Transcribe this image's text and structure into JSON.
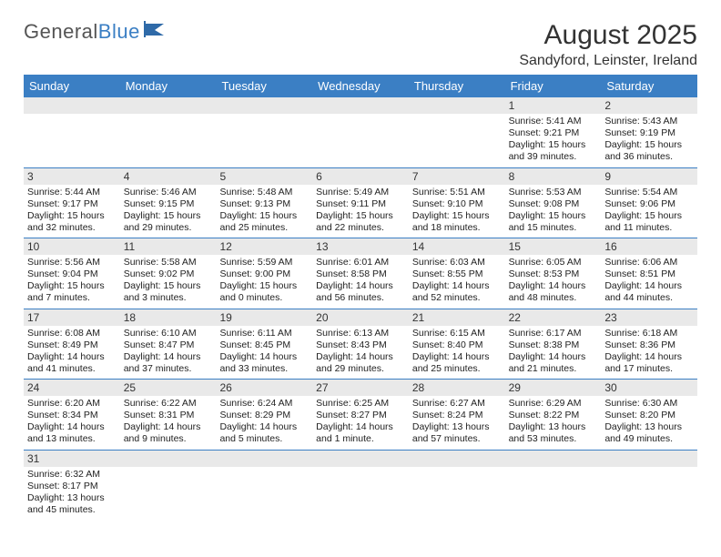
{
  "logo": {
    "text1": "General",
    "text2": "Blue"
  },
  "title": "August 2025",
  "location": "Sandyford, Leinster, Ireland",
  "colors": {
    "header_bg": "#3b7fc4",
    "row_band": "#e9e9e9",
    "text": "#333333",
    "page_bg": "#ffffff"
  },
  "day_labels": [
    "Sunday",
    "Monday",
    "Tuesday",
    "Wednesday",
    "Thursday",
    "Friday",
    "Saturday"
  ],
  "weeks": [
    [
      null,
      null,
      null,
      null,
      null,
      {
        "n": "1",
        "sr": "Sunrise: 5:41 AM",
        "ss": "Sunset: 9:21 PM",
        "d1": "Daylight: 15 hours",
        "d2": "and 39 minutes."
      },
      {
        "n": "2",
        "sr": "Sunrise: 5:43 AM",
        "ss": "Sunset: 9:19 PM",
        "d1": "Daylight: 15 hours",
        "d2": "and 36 minutes."
      }
    ],
    [
      {
        "n": "3",
        "sr": "Sunrise: 5:44 AM",
        "ss": "Sunset: 9:17 PM",
        "d1": "Daylight: 15 hours",
        "d2": "and 32 minutes."
      },
      {
        "n": "4",
        "sr": "Sunrise: 5:46 AM",
        "ss": "Sunset: 9:15 PM",
        "d1": "Daylight: 15 hours",
        "d2": "and 29 minutes."
      },
      {
        "n": "5",
        "sr": "Sunrise: 5:48 AM",
        "ss": "Sunset: 9:13 PM",
        "d1": "Daylight: 15 hours",
        "d2": "and 25 minutes."
      },
      {
        "n": "6",
        "sr": "Sunrise: 5:49 AM",
        "ss": "Sunset: 9:11 PM",
        "d1": "Daylight: 15 hours",
        "d2": "and 22 minutes."
      },
      {
        "n": "7",
        "sr": "Sunrise: 5:51 AM",
        "ss": "Sunset: 9:10 PM",
        "d1": "Daylight: 15 hours",
        "d2": "and 18 minutes."
      },
      {
        "n": "8",
        "sr": "Sunrise: 5:53 AM",
        "ss": "Sunset: 9:08 PM",
        "d1": "Daylight: 15 hours",
        "d2": "and 15 minutes."
      },
      {
        "n": "9",
        "sr": "Sunrise: 5:54 AM",
        "ss": "Sunset: 9:06 PM",
        "d1": "Daylight: 15 hours",
        "d2": "and 11 minutes."
      }
    ],
    [
      {
        "n": "10",
        "sr": "Sunrise: 5:56 AM",
        "ss": "Sunset: 9:04 PM",
        "d1": "Daylight: 15 hours",
        "d2": "and 7 minutes."
      },
      {
        "n": "11",
        "sr": "Sunrise: 5:58 AM",
        "ss": "Sunset: 9:02 PM",
        "d1": "Daylight: 15 hours",
        "d2": "and 3 minutes."
      },
      {
        "n": "12",
        "sr": "Sunrise: 5:59 AM",
        "ss": "Sunset: 9:00 PM",
        "d1": "Daylight: 15 hours",
        "d2": "and 0 minutes."
      },
      {
        "n": "13",
        "sr": "Sunrise: 6:01 AM",
        "ss": "Sunset: 8:58 PM",
        "d1": "Daylight: 14 hours",
        "d2": "and 56 minutes."
      },
      {
        "n": "14",
        "sr": "Sunrise: 6:03 AM",
        "ss": "Sunset: 8:55 PM",
        "d1": "Daylight: 14 hours",
        "d2": "and 52 minutes."
      },
      {
        "n": "15",
        "sr": "Sunrise: 6:05 AM",
        "ss": "Sunset: 8:53 PM",
        "d1": "Daylight: 14 hours",
        "d2": "and 48 minutes."
      },
      {
        "n": "16",
        "sr": "Sunrise: 6:06 AM",
        "ss": "Sunset: 8:51 PM",
        "d1": "Daylight: 14 hours",
        "d2": "and 44 minutes."
      }
    ],
    [
      {
        "n": "17",
        "sr": "Sunrise: 6:08 AM",
        "ss": "Sunset: 8:49 PM",
        "d1": "Daylight: 14 hours",
        "d2": "and 41 minutes."
      },
      {
        "n": "18",
        "sr": "Sunrise: 6:10 AM",
        "ss": "Sunset: 8:47 PM",
        "d1": "Daylight: 14 hours",
        "d2": "and 37 minutes."
      },
      {
        "n": "19",
        "sr": "Sunrise: 6:11 AM",
        "ss": "Sunset: 8:45 PM",
        "d1": "Daylight: 14 hours",
        "d2": "and 33 minutes."
      },
      {
        "n": "20",
        "sr": "Sunrise: 6:13 AM",
        "ss": "Sunset: 8:43 PM",
        "d1": "Daylight: 14 hours",
        "d2": "and 29 minutes."
      },
      {
        "n": "21",
        "sr": "Sunrise: 6:15 AM",
        "ss": "Sunset: 8:40 PM",
        "d1": "Daylight: 14 hours",
        "d2": "and 25 minutes."
      },
      {
        "n": "22",
        "sr": "Sunrise: 6:17 AM",
        "ss": "Sunset: 8:38 PM",
        "d1": "Daylight: 14 hours",
        "d2": "and 21 minutes."
      },
      {
        "n": "23",
        "sr": "Sunrise: 6:18 AM",
        "ss": "Sunset: 8:36 PM",
        "d1": "Daylight: 14 hours",
        "d2": "and 17 minutes."
      }
    ],
    [
      {
        "n": "24",
        "sr": "Sunrise: 6:20 AM",
        "ss": "Sunset: 8:34 PM",
        "d1": "Daylight: 14 hours",
        "d2": "and 13 minutes."
      },
      {
        "n": "25",
        "sr": "Sunrise: 6:22 AM",
        "ss": "Sunset: 8:31 PM",
        "d1": "Daylight: 14 hours",
        "d2": "and 9 minutes."
      },
      {
        "n": "26",
        "sr": "Sunrise: 6:24 AM",
        "ss": "Sunset: 8:29 PM",
        "d1": "Daylight: 14 hours",
        "d2": "and 5 minutes."
      },
      {
        "n": "27",
        "sr": "Sunrise: 6:25 AM",
        "ss": "Sunset: 8:27 PM",
        "d1": "Daylight: 14 hours",
        "d2": "and 1 minute."
      },
      {
        "n": "28",
        "sr": "Sunrise: 6:27 AM",
        "ss": "Sunset: 8:24 PM",
        "d1": "Daylight: 13 hours",
        "d2": "and 57 minutes."
      },
      {
        "n": "29",
        "sr": "Sunrise: 6:29 AM",
        "ss": "Sunset: 8:22 PM",
        "d1": "Daylight: 13 hours",
        "d2": "and 53 minutes."
      },
      {
        "n": "30",
        "sr": "Sunrise: 6:30 AM",
        "ss": "Sunset: 8:20 PM",
        "d1": "Daylight: 13 hours",
        "d2": "and 49 minutes."
      }
    ],
    [
      {
        "n": "31",
        "sr": "Sunrise: 6:32 AM",
        "ss": "Sunset: 8:17 PM",
        "d1": "Daylight: 13 hours",
        "d2": "and 45 minutes."
      },
      null,
      null,
      null,
      null,
      null,
      null
    ]
  ]
}
